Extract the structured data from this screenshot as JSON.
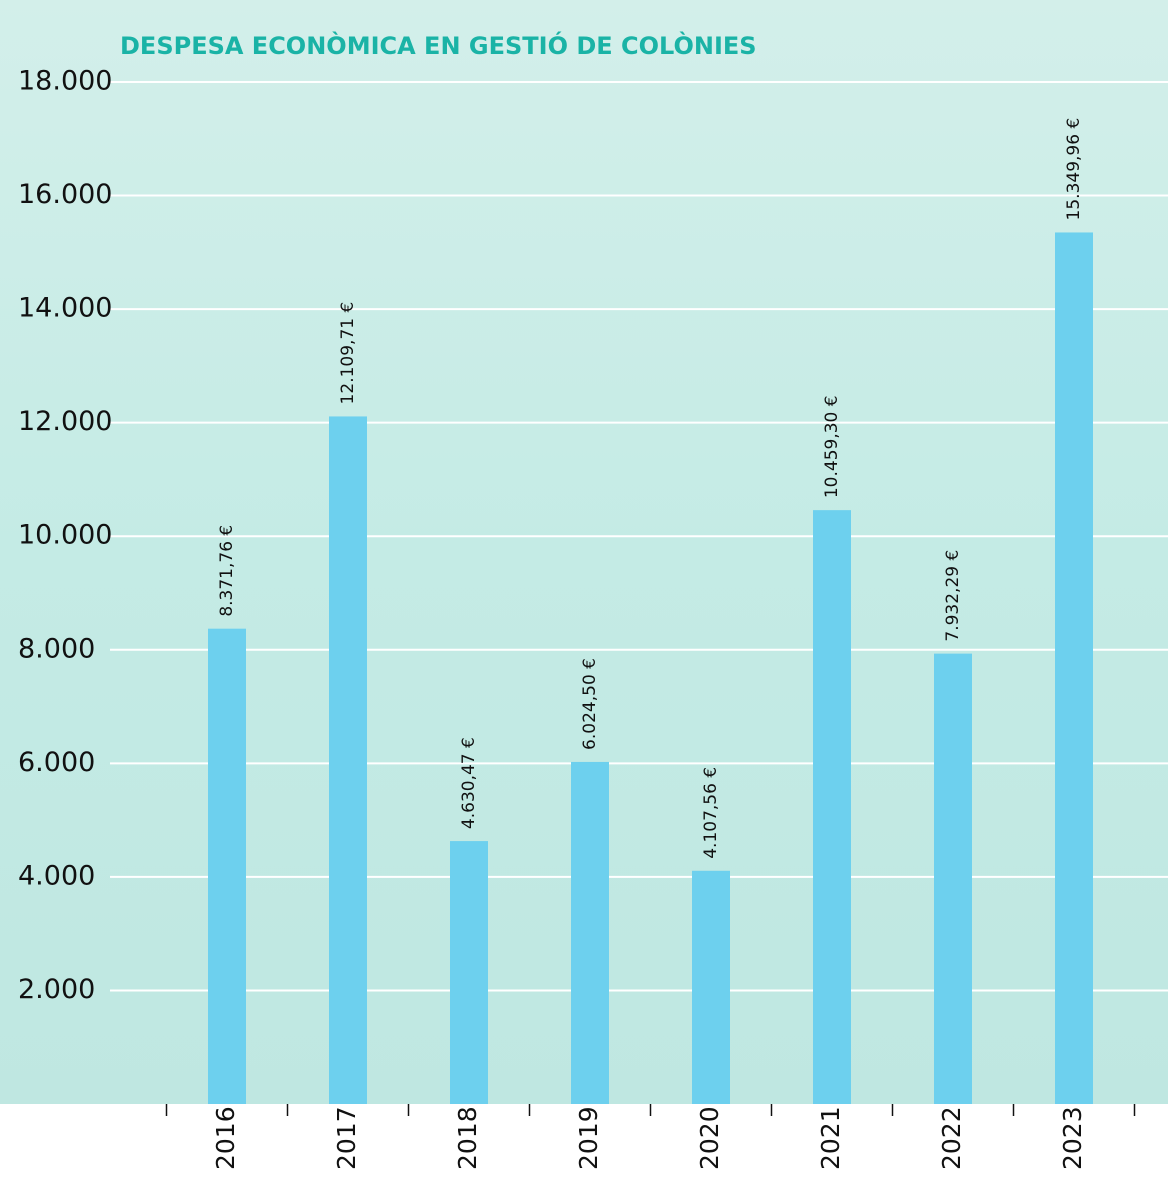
{
  "chart_data": {
    "type": "bar",
    "title": "DESPESA ECONÒMICA EN GESTIÓ DE COLÒNIES",
    "categories": [
      "2016",
      "2017",
      "2018",
      "2019",
      "2020",
      "2021",
      "2022",
      "2023"
    ],
    "values": [
      8371.76,
      12109.71,
      4630.47,
      6024.5,
      4107.56,
      10459.3,
      7932.29,
      15349.96
    ],
    "value_labels": [
      "8.371,76 €",
      "12.109,71 €",
      "4.630,47 €",
      "6.024,50 €",
      "4.107,56 €",
      "10.459,30 €",
      "7.932,29 €",
      "15.349,96 €"
    ],
    "color": "#6dd0ee",
    "ylim": [
      0,
      18000
    ],
    "yticks": [
      {
        "value": 2000,
        "label": "2.000"
      },
      {
        "value": 4000,
        "label": "4.000"
      },
      {
        "value": 6000,
        "label": "6.000"
      },
      {
        "value": 8000,
        "label": "8.000"
      },
      {
        "value": 10000,
        "label": "10.000"
      },
      {
        "value": 12000,
        "label": "12.000"
      },
      {
        "value": 14000,
        "label": "14.000"
      },
      {
        "value": 16000,
        "label": "16.000"
      },
      {
        "value": 18000,
        "label": "18.000"
      }
    ],
    "grid": true
  }
}
